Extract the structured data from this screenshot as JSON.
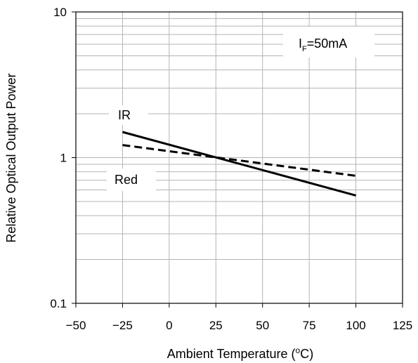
{
  "chart_data": {
    "type": "line",
    "xlabel": "Ambient Temperature (°C)",
    "xlabel_parts": {
      "main": "Ambient Temperature (",
      "sup": "o",
      "tail": "C)"
    },
    "ylabel": "Relative Optical Output Power",
    "xlim": [
      -50,
      125
    ],
    "ylim": [
      0.1,
      10
    ],
    "y_scale": "log",
    "x_ticks": [
      -50,
      -25,
      0,
      25,
      50,
      75,
      100,
      125
    ],
    "x_tick_labels": [
      "−50",
      "−25",
      "0",
      "25",
      "50",
      "75",
      "100",
      "125"
    ],
    "y_ticks": [
      0.1,
      1,
      10
    ],
    "y_tick_labels": [
      "0.1",
      "1",
      "10"
    ],
    "grid": true,
    "series": [
      {
        "name": "IR",
        "style": "solid",
        "x": [
          -25,
          100
        ],
        "y": [
          1.5,
          0.55
        ]
      },
      {
        "name": "Red",
        "style": "dashed",
        "x": [
          -25,
          100
        ],
        "y": [
          1.22,
          0.75
        ]
      }
    ],
    "condition_label": {
      "main": "I",
      "sub": "F",
      "tail": "=50mA"
    }
  },
  "colors": {
    "line": "#000000",
    "grid": "#b4b4b4",
    "axis": "#000000"
  }
}
